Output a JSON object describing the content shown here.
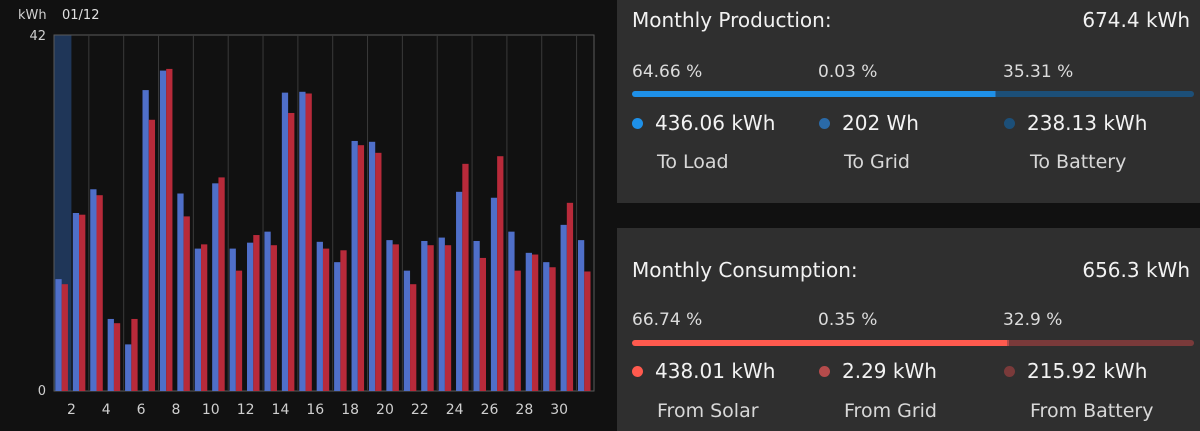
{
  "header": {
    "unit": "kWh",
    "date": "01/12"
  },
  "chart_data": {
    "type": "bar",
    "ylabel": "kWh",
    "ylim": [
      0,
      42
    ],
    "y_ticks": [
      "42",
      "0"
    ],
    "x_ticks": [
      "2",
      "4",
      "6",
      "8",
      "10",
      "12",
      "14",
      "16",
      "18",
      "20",
      "22",
      "24",
      "26",
      "28",
      "30"
    ],
    "categories": [
      1,
      2,
      3,
      4,
      5,
      6,
      7,
      8,
      9,
      10,
      11,
      12,
      13,
      14,
      15,
      16,
      17,
      18,
      19,
      20,
      21,
      22,
      23,
      24,
      25,
      26,
      27,
      28,
      29,
      30,
      31
    ],
    "highlighted_day": 1,
    "series": [
      {
        "color": "#4f6fc9",
        "values": [
          13.2,
          21,
          23.8,
          8.5,
          5.5,
          35.5,
          37.8,
          23.3,
          16.8,
          24.5,
          16.8,
          17.5,
          18.8,
          35.2,
          35.3,
          17.6,
          15.2,
          29.5,
          29.4,
          17.8,
          14.2,
          17.7,
          18.1,
          23.5,
          17.7,
          22.8,
          18.8,
          16.3,
          15.2,
          19.6,
          17.8
        ]
      },
      {
        "color": "#b82a3a",
        "values": [
          12.6,
          20.8,
          23.1,
          8,
          8.5,
          32,
          38,
          20.6,
          17.3,
          25.2,
          14.2,
          18.4,
          17.2,
          32.8,
          35.1,
          16.8,
          16.6,
          29,
          28.1,
          17.3,
          12.6,
          17.2,
          17.2,
          26.8,
          15.7,
          27.7,
          14.2,
          16.1,
          14.6,
          22.2,
          14.1
        ]
      }
    ]
  },
  "production": {
    "title": "Monthly Production:",
    "total": "674.4 kWh",
    "segments": [
      {
        "pct": "64.66 %",
        "fraction": 0.6466,
        "value": "436.06 kWh",
        "label": "To Load",
        "color": "#1e90e8"
      },
      {
        "pct": "0.03 %",
        "fraction": 0.0003,
        "value": "202 Wh",
        "label": "To Grid",
        "color": "#2a6aa8"
      },
      {
        "pct": "35.31 %",
        "fraction": 0.3531,
        "value": "238.13 kWh",
        "label": "To Battery",
        "color": "#1c4f78"
      }
    ]
  },
  "consumption": {
    "title": "Monthly Consumption:",
    "total": "656.3 kWh",
    "segments": [
      {
        "pct": "66.74 %",
        "fraction": 0.6674,
        "value": "438.01 kWh",
        "label": "From Solar",
        "color": "#ff5a4e"
      },
      {
        "pct": "0.35 %",
        "fraction": 0.0035,
        "value": "2.29 kWh",
        "label": "From Grid",
        "color": "#b54b4b"
      },
      {
        "pct": "32.9 %",
        "fraction": 0.329,
        "value": "215.92 kWh",
        "label": "From Battery",
        "color": "#7a3a3a"
      }
    ]
  }
}
